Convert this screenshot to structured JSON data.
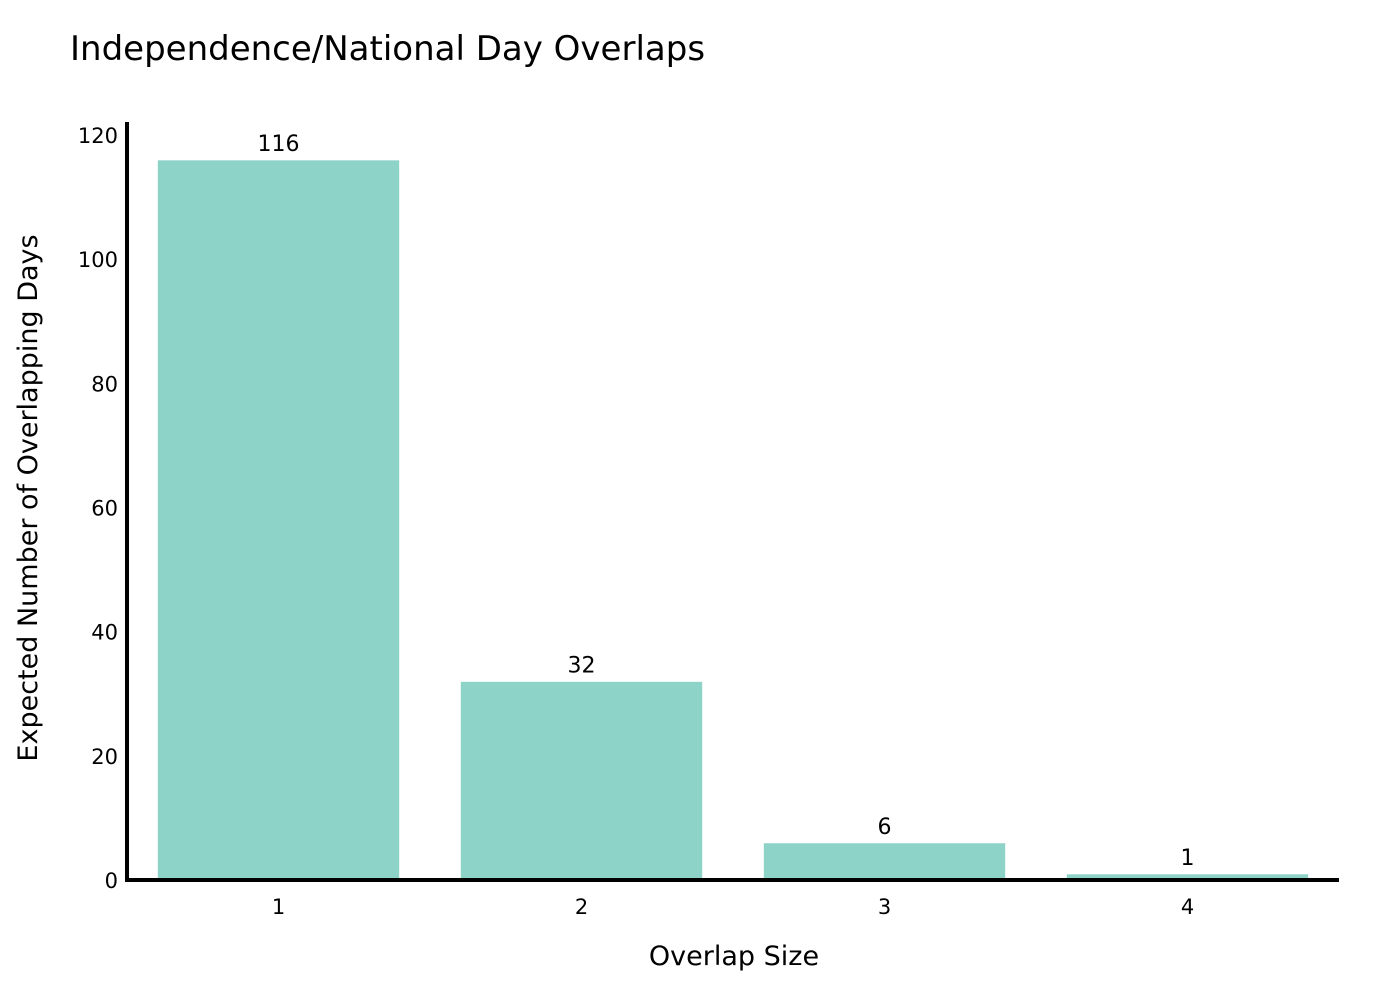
{
  "chart_data": {
    "type": "bar",
    "title": "Independence/National Day Overlaps",
    "xlabel": "Overlap Size",
    "ylabel": "Expected Number of Overlapping Days",
    "categories": [
      "1",
      "2",
      "3",
      "4"
    ],
    "values": [
      116,
      32,
      6,
      1
    ],
    "data_labels": [
      "116",
      "32",
      "6",
      "1"
    ],
    "ylim": [
      0,
      120
    ],
    "yticks": [
      0,
      20,
      40,
      60,
      80,
      100,
      120
    ],
    "ytick_labels": [
      "0",
      "20",
      "40",
      "60",
      "80",
      "100",
      "120"
    ],
    "grid": false,
    "legend": "none",
    "colors": {
      "bar": "#8ed3c7",
      "bar_edge": "#ffffff",
      "axis": "#000000",
      "background": "#ffffff"
    }
  }
}
